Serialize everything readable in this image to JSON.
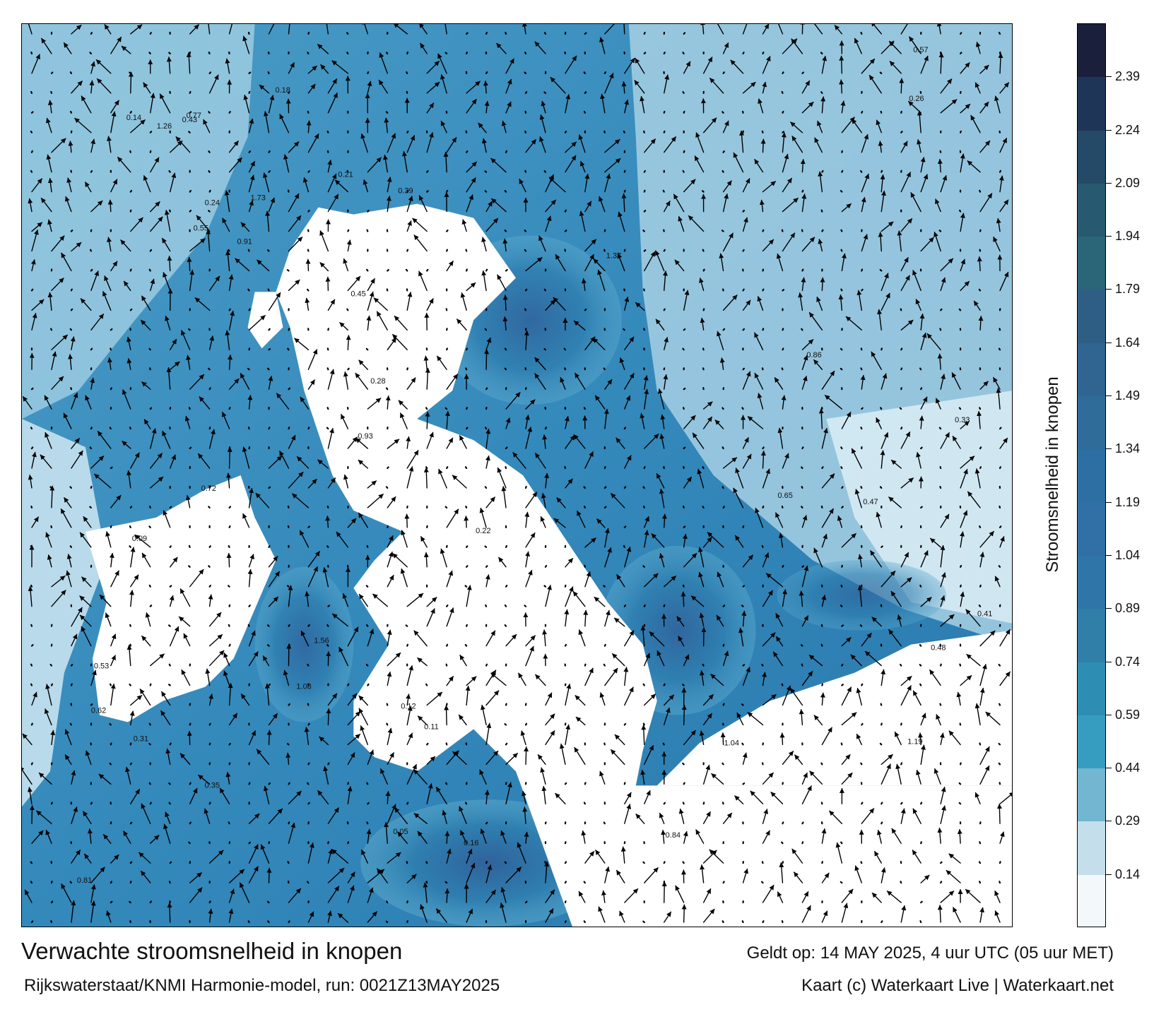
{
  "map": {
    "title": "Verwachte stroomsnelheid in knopen",
    "model_run": "Rijkswaterstaat/KNMI Harmonie-model, run: 0021Z13MAY2025",
    "valid_time": "Geldt op: 14 MAY 2025, 4 uur UTC (05 uur MET)",
    "credit": "Kaart (c) Waterkaart Live | Waterkaart.net",
    "colors": {
      "land": "#ffffff",
      "arrow": "#000000",
      "frame": "#000000"
    }
  },
  "legend": {
    "title": "Stroomsnelheid in knopen",
    "ticks": [
      "2.39",
      "2.24",
      "2.09",
      "1.94",
      "1.79",
      "1.64",
      "1.49",
      "1.34",
      "1.19",
      "1.04",
      "0.89",
      "0.74",
      "0.59",
      "0.44",
      "0.29",
      "0.14"
    ],
    "bands": [
      "#1a1f3c",
      "#1f3557",
      "#244a67",
      "#275a70",
      "#2a6578",
      "#2f5e85",
      "#2f6590",
      "#306c99",
      "#2d6fa3",
      "#3070a6",
      "#2f75a8",
      "#2f7fa8",
      "#2e8db3",
      "#379dc0",
      "#72b6d2",
      "#c4dfeb",
      "#f3f8fb"
    ]
  },
  "samples": [
    {
      "label": "0.26"
    },
    {
      "label": "0.39"
    },
    {
      "label": "0.24"
    },
    {
      "label": "0.33"
    },
    {
      "label": "0.41"
    },
    {
      "label": "0.57"
    },
    {
      "label": "0.45"
    },
    {
      "label": "0.84"
    },
    {
      "label": "0.93"
    },
    {
      "label": "0.72"
    },
    {
      "label": "1.04"
    },
    {
      "label": "0.91"
    },
    {
      "label": "1.19"
    },
    {
      "label": "1.37"
    },
    {
      "label": "1.73"
    },
    {
      "label": "1.56"
    },
    {
      "label": "1.26"
    },
    {
      "label": "0.86"
    },
    {
      "label": "0.47"
    },
    {
      "label": "0.21"
    },
    {
      "label": "0.14"
    },
    {
      "label": "0.09"
    },
    {
      "label": "0.18"
    },
    {
      "label": "0.05"
    },
    {
      "label": "0.81"
    },
    {
      "label": "0.55"
    },
    {
      "label": "0.62"
    },
    {
      "label": "0.31"
    },
    {
      "label": "0.12"
    },
    {
      "label": "0.16"
    },
    {
      "label": "0.43"
    },
    {
      "label": "0.65"
    },
    {
      "label": "0.77"
    },
    {
      "label": "1.08"
    },
    {
      "label": "0.35"
    },
    {
      "label": "0.28"
    },
    {
      "label": "0.48"
    },
    {
      "label": "0.53"
    },
    {
      "label": "0.22"
    },
    {
      "label": "0.11"
    }
  ]
}
